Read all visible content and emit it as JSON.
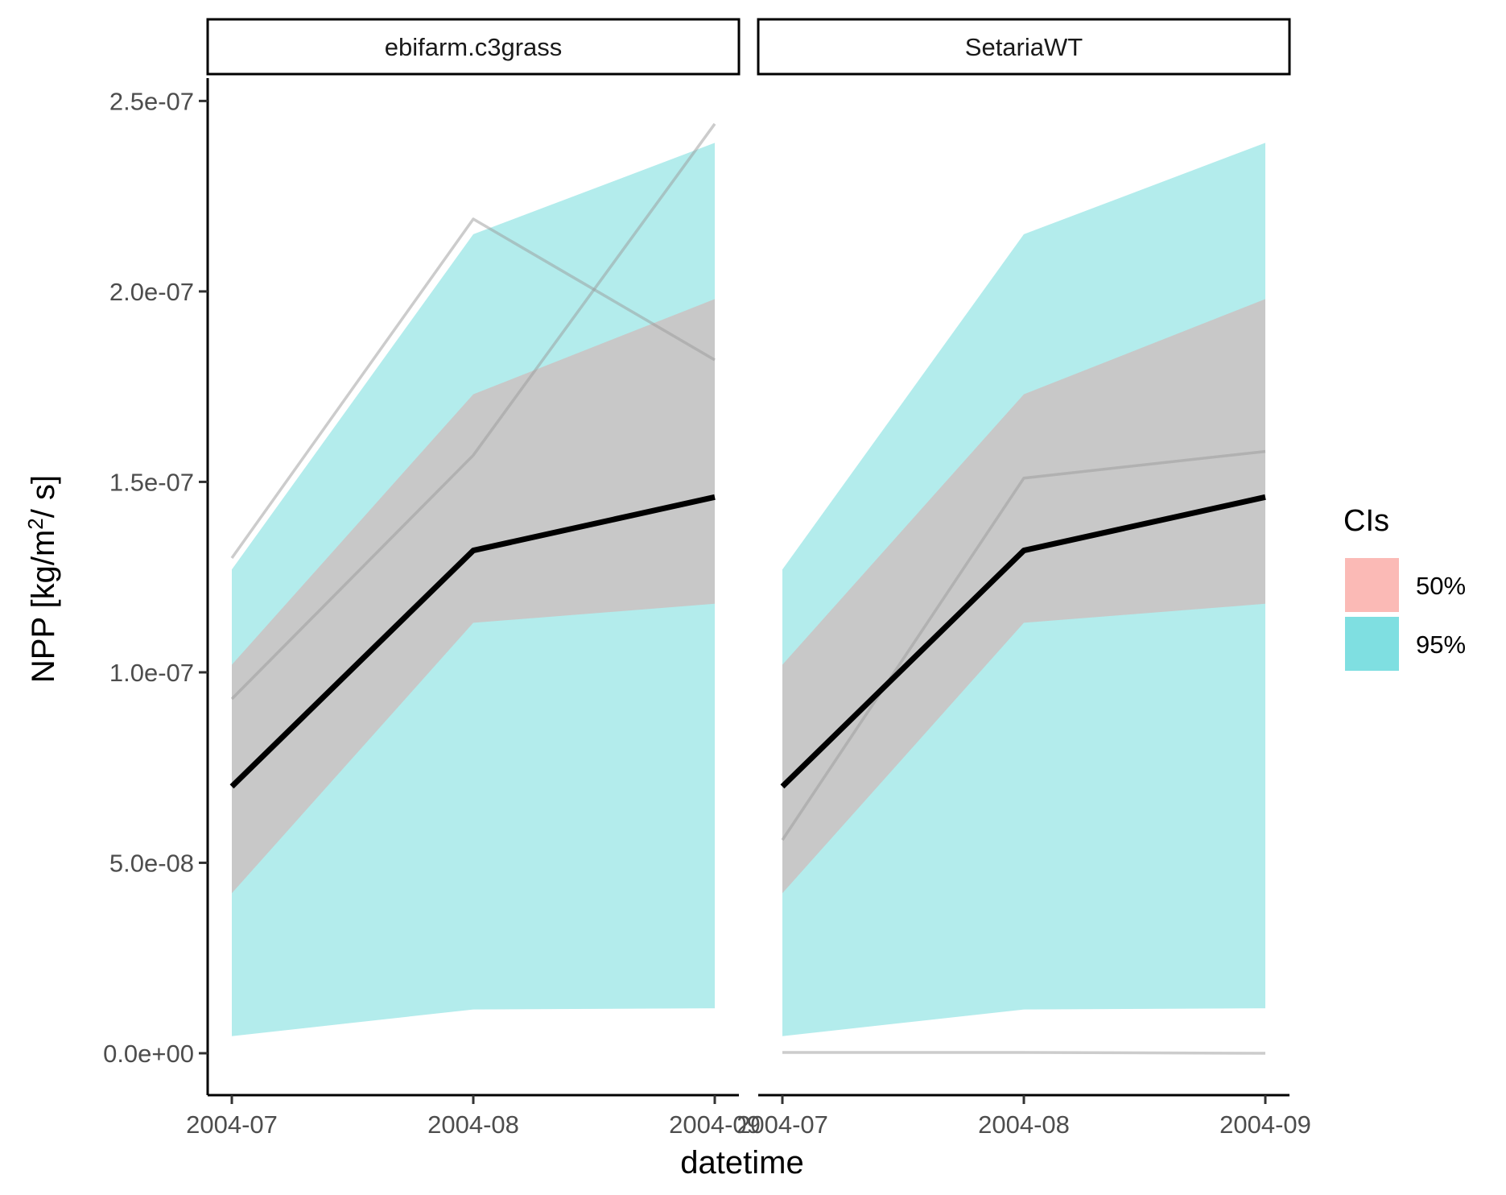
{
  "chart_data": {
    "type": "area",
    "facets": [
      "ebifarm.c3grass",
      "SetariaWT"
    ],
    "x": [
      "2004-07",
      "2004-08",
      "2004-09"
    ],
    "x_tick_labels": [
      "2004-07",
      "2004-08",
      "2004-09"
    ],
    "y_ticks": [
      0,
      5e-08,
      1e-07,
      1.5e-07,
      2e-07,
      2.5e-07
    ],
    "y_tick_labels": [
      "0.0e+00",
      "5.0e-08",
      "1.0e-07",
      "1.5e-07",
      "2.0e-07",
      "2.5e-07"
    ],
    "ylim": [
      -1.1e-08,
      2.56e-07
    ],
    "xlabel": "datetime",
    "ylabel": {
      "prefix": "NPP [kg/m",
      "superscript": "2",
      "suffix": "/ s]"
    },
    "legend": {
      "title": "CIs",
      "position": "right",
      "items": [
        {
          "label": "50%",
          "color": "#F8766D"
        },
        {
          "label": "95%",
          "color": "#00BFC4"
        }
      ]
    },
    "colors": {
      "ci95_fill": "#b3ecec",
      "ci50_fill": "#c8c8c8",
      "median_line": "#000000",
      "ensemble_line": "#999999"
    },
    "panels": [
      {
        "facet": "ebifarm.c3grass",
        "ci95_lower": [
          4.5e-09,
          1.15e-08,
          1.18e-08
        ],
        "ci95_upper": [
          1.27e-07,
          2.15e-07,
          2.39e-07
        ],
        "ci50_lower": [
          4.2e-08,
          1.13e-07,
          1.18e-07
        ],
        "ci50_upper": [
          1.02e-07,
          1.73e-07,
          1.98e-07
        ],
        "median": [
          7e-08,
          1.32e-07,
          1.46e-07
        ],
        "ensemble_members": [
          [
            1.3e-07,
            2.19e-07,
            1.82e-07
          ],
          [
            9.3e-08,
            1.57e-07,
            2.44e-07
          ]
        ]
      },
      {
        "facet": "SetariaWT",
        "ci95_lower": [
          4.5e-09,
          1.15e-08,
          1.18e-08
        ],
        "ci95_upper": [
          1.27e-07,
          2.15e-07,
          2.39e-07
        ],
        "ci50_lower": [
          4.2e-08,
          1.13e-07,
          1.18e-07
        ],
        "ci50_upper": [
          1.02e-07,
          1.73e-07,
          1.98e-07
        ],
        "median": [
          7e-08,
          1.32e-07,
          1.46e-07
        ],
        "ensemble_members": [
          [
            5.6e-08,
            1.51e-07,
            1.58e-07
          ],
          [
            2e-10,
            2e-10,
            0
          ]
        ]
      }
    ]
  }
}
